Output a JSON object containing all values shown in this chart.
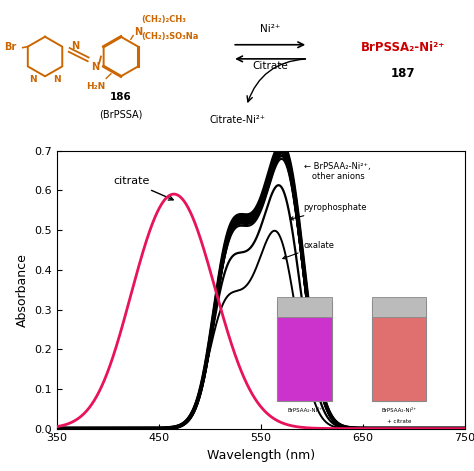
{
  "fig_width": 4.74,
  "fig_height": 4.71,
  "dpi": 100,
  "orange_color": "#CC6600",
  "red_color": "#CC0000",
  "black_color": "#000000",
  "pink_color": "#E8135A",
  "xlabel": "Wavelength (nm)",
  "ylabel": "Absorbance",
  "xlim": [
    350,
    750
  ],
  "ylim": [
    0,
    0.7
  ],
  "xticks": [
    350,
    450,
    550,
    650,
    750
  ],
  "yticks": [
    0,
    0.1,
    0.2,
    0.3,
    0.4,
    0.5,
    0.6,
    0.7
  ]
}
